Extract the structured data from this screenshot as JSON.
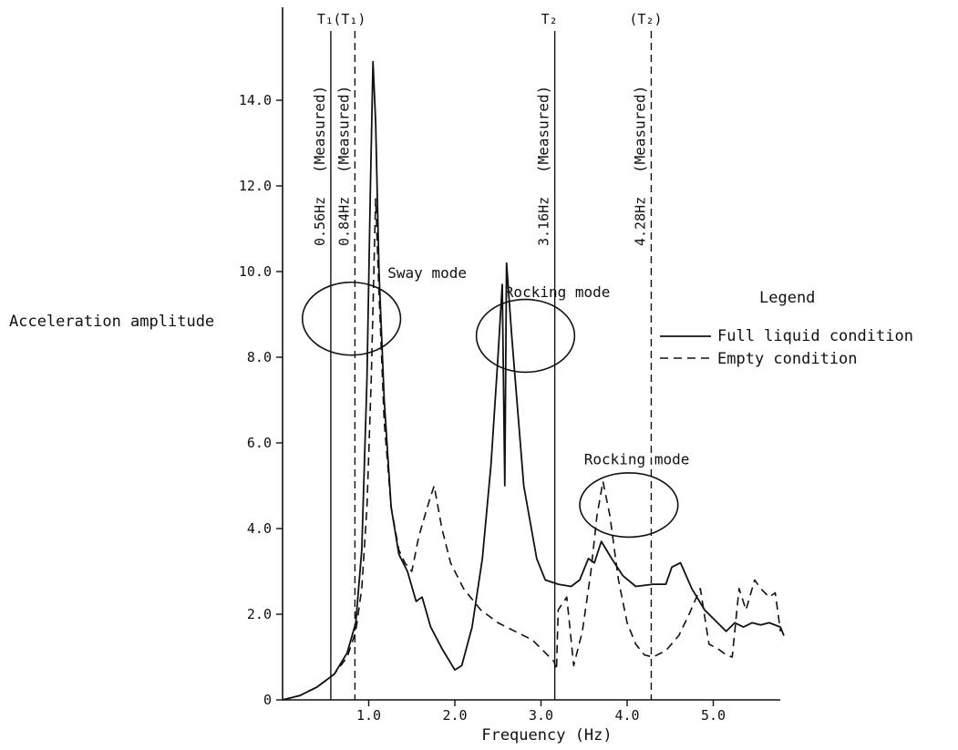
{
  "chart_data": {
    "type": "line",
    "title": "",
    "xlabel": "Frequency (Hz)",
    "ylabel": "Acceleration amplitude",
    "xlim": [
      0,
      5.85
    ],
    "ylim": [
      0,
      16.2
    ],
    "x_ticks": [
      {
        "value": 1.0,
        "label": "1.0"
      },
      {
        "value": 2.0,
        "label": "2.0"
      },
      {
        "value": 3.0,
        "label": "3.0"
      },
      {
        "value": 4.0,
        "label": "4.0"
      },
      {
        "value": 5.0,
        "label": "5.0"
      }
    ],
    "y_ticks": [
      {
        "value": 0,
        "label": "0"
      },
      {
        "value": 2.0,
        "label": "2.0"
      },
      {
        "value": 4.0,
        "label": "4.0"
      },
      {
        "value": 6.0,
        "label": "6.0"
      },
      {
        "value": 8.0,
        "label": "8.0"
      },
      {
        "value": 10.0,
        "label": "10.0"
      },
      {
        "value": 12.0,
        "label": "12.0"
      },
      {
        "value": 14.0,
        "label": "14.0"
      }
    ],
    "grid": false,
    "legend": {
      "title": "Legend",
      "placement": "right",
      "entries": [
        {
          "label": "Full liquid condition",
          "dash": "solid"
        },
        {
          "label": "Empty condition",
          "dash": "dashed"
        }
      ]
    },
    "series": [
      {
        "name": "Full liquid condition",
        "dash": "solid",
        "points": [
          [
            0.0,
            0.0
          ],
          [
            0.2,
            0.1
          ],
          [
            0.4,
            0.3
          ],
          [
            0.6,
            0.6
          ],
          [
            0.75,
            1.1
          ],
          [
            0.85,
            1.8
          ],
          [
            0.92,
            3.5
          ],
          [
            0.98,
            7.5
          ],
          [
            1.02,
            12.0
          ],
          [
            1.05,
            14.9
          ],
          [
            1.08,
            13.5
          ],
          [
            1.12,
            10.0
          ],
          [
            1.18,
            7.0
          ],
          [
            1.26,
            4.5
          ],
          [
            1.35,
            3.4
          ],
          [
            1.45,
            3.0
          ],
          [
            1.55,
            2.3
          ],
          [
            1.62,
            2.4
          ],
          [
            1.72,
            1.7
          ],
          [
            1.85,
            1.2
          ],
          [
            2.0,
            0.7
          ],
          [
            2.08,
            0.8
          ],
          [
            2.2,
            1.7
          ],
          [
            2.32,
            3.3
          ],
          [
            2.42,
            5.5
          ],
          [
            2.5,
            8.0
          ],
          [
            2.55,
            9.7
          ],
          [
            2.58,
            5.0
          ],
          [
            2.6,
            10.2
          ],
          [
            2.66,
            8.5
          ],
          [
            2.8,
            5.0
          ],
          [
            2.95,
            3.3
          ],
          [
            3.05,
            2.8
          ],
          [
            3.2,
            2.7
          ],
          [
            3.35,
            2.65
          ],
          [
            3.45,
            2.8
          ],
          [
            3.55,
            3.3
          ],
          [
            3.62,
            3.2
          ],
          [
            3.7,
            3.7
          ],
          [
            3.82,
            3.3
          ],
          [
            3.95,
            2.9
          ],
          [
            4.1,
            2.65
          ],
          [
            4.3,
            2.7
          ],
          [
            4.45,
            2.7
          ],
          [
            4.52,
            3.1
          ],
          [
            4.62,
            3.2
          ],
          [
            4.75,
            2.6
          ],
          [
            4.9,
            2.1
          ],
          [
            5.05,
            1.8
          ],
          [
            5.15,
            1.6
          ],
          [
            5.25,
            1.8
          ],
          [
            5.35,
            1.7
          ],
          [
            5.45,
            1.8
          ],
          [
            5.55,
            1.75
          ],
          [
            5.65,
            1.8
          ],
          [
            5.78,
            1.7
          ],
          [
            5.82,
            1.5
          ]
        ]
      },
      {
        "name": "Empty condition",
        "dash": "dashed",
        "points": [
          [
            0.0,
            0.0
          ],
          [
            0.2,
            0.1
          ],
          [
            0.4,
            0.3
          ],
          [
            0.6,
            0.6
          ],
          [
            0.75,
            1.0
          ],
          [
            0.85,
            1.6
          ],
          [
            0.92,
            2.6
          ],
          [
            0.98,
            4.5
          ],
          [
            1.03,
            7.5
          ],
          [
            1.08,
            11.7
          ],
          [
            1.12,
            9.5
          ],
          [
            1.18,
            6.5
          ],
          [
            1.26,
            4.5
          ],
          [
            1.35,
            3.5
          ],
          [
            1.42,
            3.2
          ],
          [
            1.5,
            3.0
          ],
          [
            1.58,
            3.8
          ],
          [
            1.68,
            4.5
          ],
          [
            1.76,
            5.0
          ],
          [
            1.85,
            4.0
          ],
          [
            1.95,
            3.2
          ],
          [
            2.1,
            2.6
          ],
          [
            2.3,
            2.1
          ],
          [
            2.5,
            1.8
          ],
          [
            2.7,
            1.6
          ],
          [
            2.9,
            1.4
          ],
          [
            3.05,
            1.1
          ],
          [
            3.15,
            0.9
          ],
          [
            3.18,
            0.7
          ],
          [
            3.2,
            2.1
          ],
          [
            3.3,
            2.4
          ],
          [
            3.38,
            0.8
          ],
          [
            3.48,
            1.6
          ],
          [
            3.58,
            3.0
          ],
          [
            3.65,
            4.3
          ],
          [
            3.72,
            5.1
          ],
          [
            3.8,
            4.3
          ],
          [
            3.9,
            2.8
          ],
          [
            4.0,
            1.8
          ],
          [
            4.1,
            1.3
          ],
          [
            4.2,
            1.05
          ],
          [
            4.3,
            1.0
          ],
          [
            4.45,
            1.15
          ],
          [
            4.6,
            1.5
          ],
          [
            4.72,
            2.0
          ],
          [
            4.85,
            2.6
          ],
          [
            4.95,
            1.3
          ],
          [
            5.05,
            1.2
          ],
          [
            5.15,
            1.05
          ],
          [
            5.22,
            1.0
          ],
          [
            5.3,
            2.6
          ],
          [
            5.38,
            2.1
          ],
          [
            5.48,
            2.8
          ],
          [
            5.55,
            2.6
          ],
          [
            5.65,
            2.4
          ],
          [
            5.72,
            2.5
          ],
          [
            5.78,
            1.6
          ]
        ]
      }
    ],
    "vertical_lines": [
      {
        "x": 0.56,
        "dash": "solid",
        "label": "0.56Hz",
        "note": "(Measured)",
        "top_label": "T₁"
      },
      {
        "x": 0.84,
        "dash": "dashed",
        "label": "0.84Hz",
        "note": "(Measured)",
        "top_label": "(T₁)"
      },
      {
        "x": 3.16,
        "dash": "solid",
        "label": "3.16Hz",
        "note": "(Measured)",
        "top_label": "T₂"
      },
      {
        "x": 4.28,
        "dash": "dashed",
        "label": "4.28Hz",
        "note": "(Measured)",
        "top_label": "(T₂)"
      }
    ],
    "annotations": [
      {
        "text": "Sway mode",
        "x": 1.22,
        "y": 9.85,
        "ellipse": {
          "cx": 0.8,
          "cy": 8.9,
          "rx": 0.57,
          "ry": 0.85
        }
      },
      {
        "text": "Rocking mode",
        "x": 2.58,
        "y": 9.4,
        "ellipse": {
          "cx": 2.82,
          "cy": 8.5,
          "rx": 0.57,
          "ry": 0.85
        }
      },
      {
        "text": "Rocking mode",
        "x": 3.5,
        "y": 5.5,
        "ellipse": {
          "cx": 4.02,
          "cy": 4.55,
          "rx": 0.57,
          "ry": 0.75
        }
      }
    ]
  }
}
